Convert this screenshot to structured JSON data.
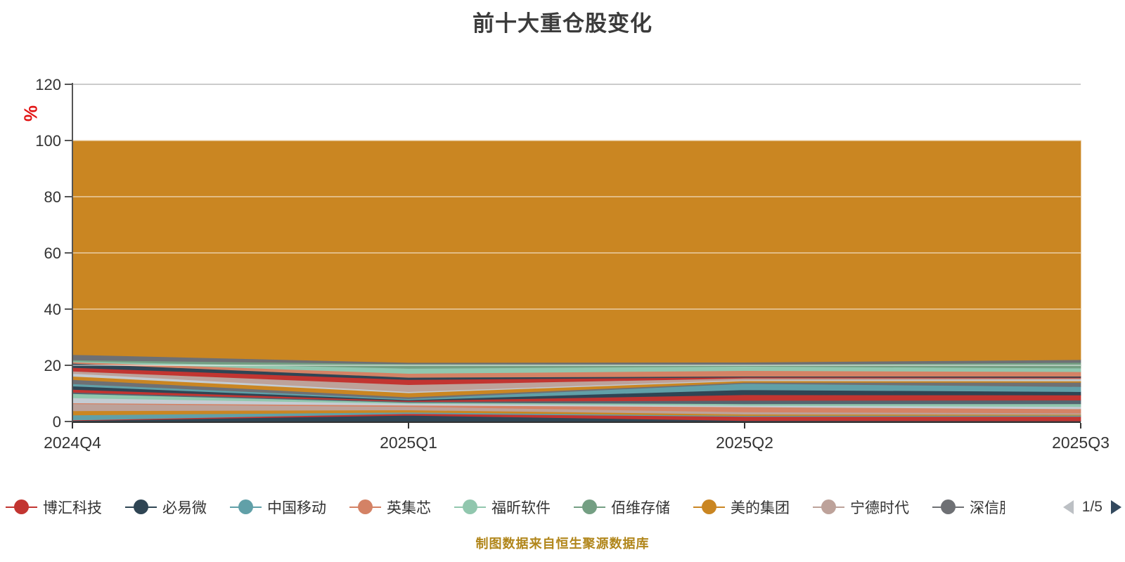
{
  "title": "前十大重仓股变化",
  "y_axis": {
    "unit": "%",
    "unit_color": "#e21515"
  },
  "footer": {
    "source_note": "制图数据来自恒生聚源数据库"
  },
  "legend": {
    "page_label": "1/5",
    "items": [
      {
        "label": "博汇科技",
        "color": "#c23531"
      },
      {
        "label": "必易微",
        "color": "#2f4554"
      },
      {
        "label": "中国移动",
        "color": "#61a0a8"
      },
      {
        "label": "英集芯",
        "color": "#d48265"
      },
      {
        "label": "福昕软件",
        "color": "#91c7ae"
      },
      {
        "label": "佰维存储",
        "color": "#749f83"
      },
      {
        "label": "美的集团",
        "color": "#ca8622"
      },
      {
        "label": "宁德时代",
        "color": "#bda29a"
      },
      {
        "label": "深信服",
        "color": "#6e7074",
        "clipped": true
      }
    ]
  },
  "chart_data": {
    "type": "area",
    "stacked": true,
    "title": "前十大重仓股变化",
    "ylabel": "%",
    "ylim": [
      0,
      120
    ],
    "yticks": [
      0,
      20,
      40,
      60,
      80,
      100,
      120
    ],
    "grid": true,
    "legend_position": "bottom",
    "categories": [
      "2024Q4",
      "2025Q1",
      "2025Q2",
      "2025Q3"
    ],
    "series": [
      {
        "name": "必易微",
        "color": "#2f4554",
        "values": [
          0.3,
          2.2,
          0.3,
          0.2
        ]
      },
      {
        "name": "博汇科技",
        "color": "#c23531",
        "values": [
          0.2,
          0.6,
          1.5,
          1.6
        ]
      },
      {
        "name": "中国移动",
        "color": "#61a0a8",
        "values": [
          1.8,
          0.5,
          0.3,
          0.4
        ]
      },
      {
        "name": "",
        "color": "#ca8622",
        "values": [
          1.5,
          0.8,
          0.5,
          0.3
        ]
      },
      {
        "name": "宁德时代",
        "color": "#bda29a",
        "values": [
          2.5,
          1.2,
          0.8,
          0.5
        ]
      },
      {
        "name": "英集芯",
        "color": "#d48265",
        "values": [
          0.3,
          0.5,
          1.8,
          1.5
        ]
      },
      {
        "name": "",
        "color": "#c4ccd3",
        "values": [
          1.8,
          0.6,
          0.5,
          0.8
        ]
      },
      {
        "name": "福昕软件",
        "color": "#91c7ae",
        "values": [
          1.5,
          0.4,
          0.6,
          1.0
        ]
      },
      {
        "name": "",
        "color": "#546570",
        "values": [
          0.5,
          0.3,
          1.2,
          1.3
        ]
      },
      {
        "name": "",
        "color": "#c23531",
        "values": [
          1.0,
          0.3,
          2.0,
          1.8
        ]
      },
      {
        "name": "",
        "color": "#2f4554",
        "values": [
          1.2,
          0.3,
          1.8,
          1.2
        ]
      },
      {
        "name": "",
        "color": "#61a0a8",
        "values": [
          0.8,
          0.4,
          2.2,
          1.8
        ]
      },
      {
        "name": "深信服",
        "color": "#6e7074",
        "values": [
          1.5,
          0.6,
          0.4,
          1.5
        ]
      },
      {
        "name": "",
        "color": "#ca8622",
        "values": [
          1.2,
          1.5,
          0.6,
          0.5
        ]
      },
      {
        "name": "",
        "color": "#c4ccd3",
        "values": [
          1.0,
          0.4,
          0.3,
          0.6
        ]
      },
      {
        "name": "",
        "color": "#bda29a",
        "values": [
          0.8,
          2.5,
          0.6,
          0.4
        ]
      },
      {
        "name": "",
        "color": "#c23531",
        "values": [
          1.3,
          1.8,
          0.4,
          0.3
        ]
      },
      {
        "name": "",
        "color": "#2f4554",
        "values": [
          1.5,
          0.8,
          0.3,
          0.4
        ]
      },
      {
        "name": "",
        "color": "#d48265",
        "values": [
          0.5,
          1.4,
          2.0,
          1.6
        ]
      },
      {
        "name": "",
        "color": "#91c7ae",
        "values": [
          0.3,
          1.8,
          1.5,
          1.3
        ]
      },
      {
        "name": "佰维存储",
        "color": "#749f83",
        "values": [
          0.4,
          1.6,
          0.7,
          2.0
        ]
      },
      {
        "name": "",
        "color": "#6e7074",
        "values": [
          1.9,
          0.5,
          0.8,
          1.0
        ]
      },
      {
        "name": "美的集团",
        "color": "#ca8622",
        "values": [
          76.2,
          79.0,
          78.9,
          78.0
        ]
      }
    ]
  }
}
